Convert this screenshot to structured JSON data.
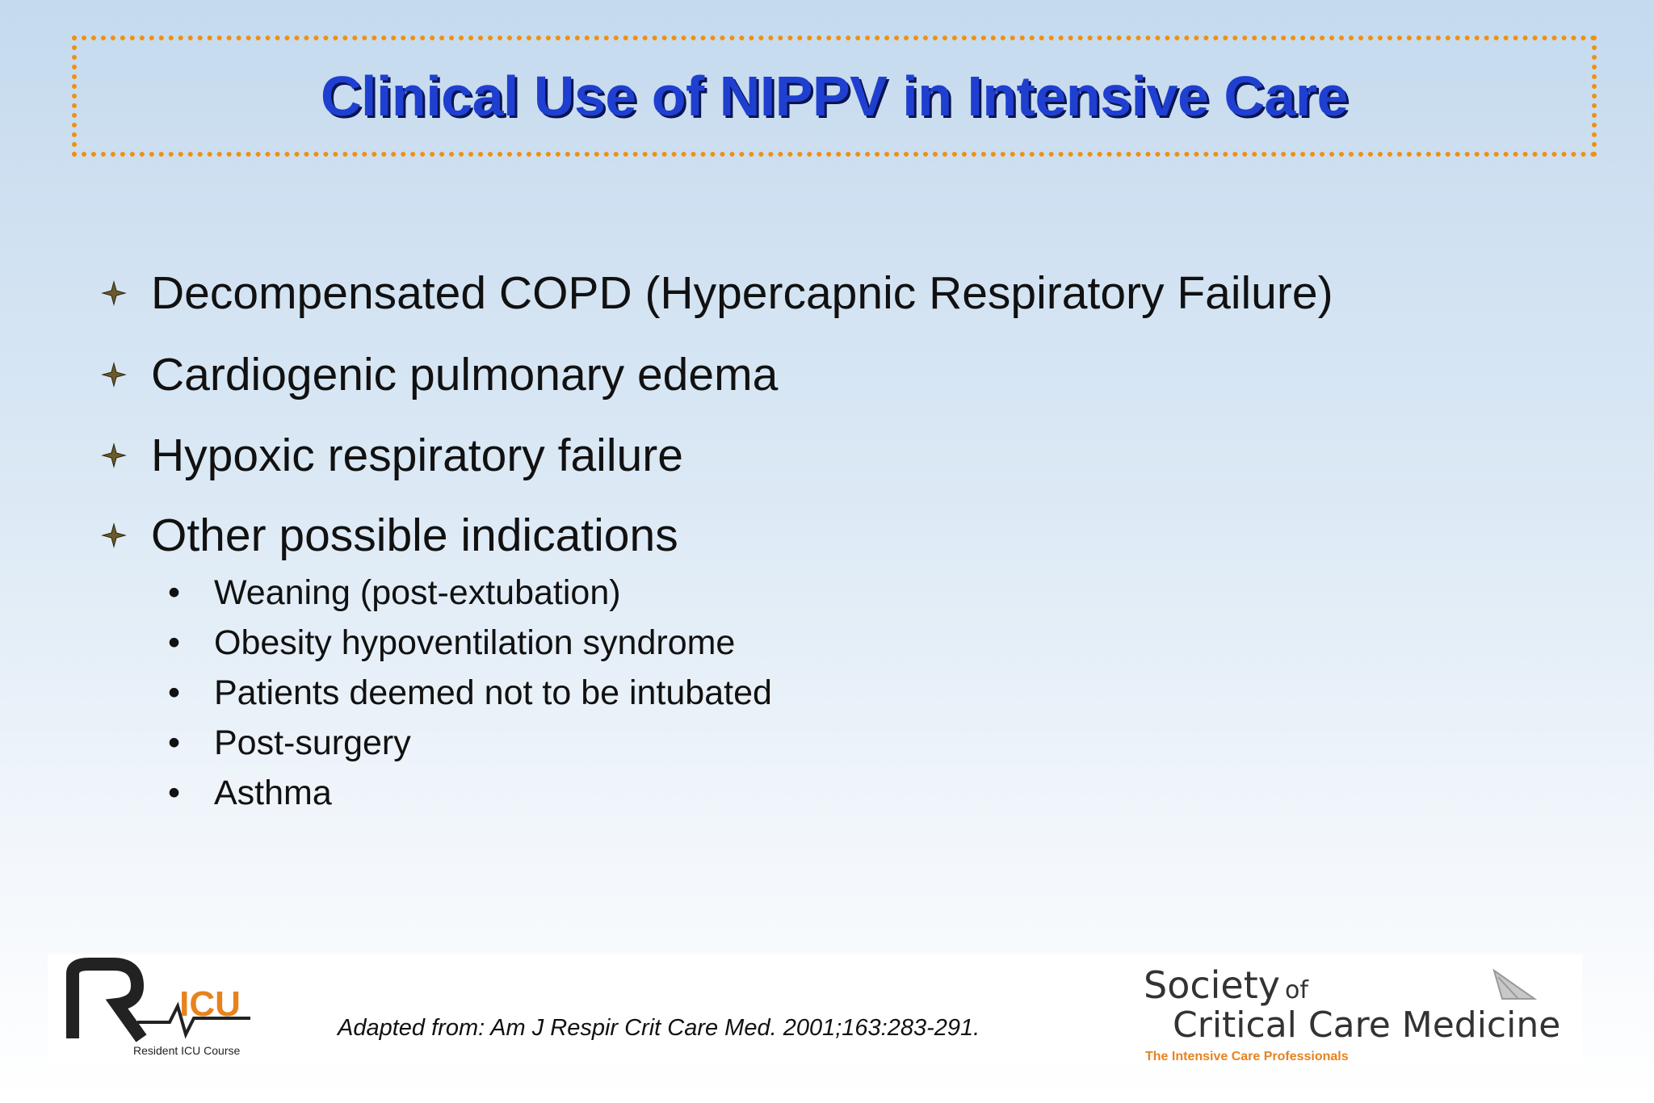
{
  "header": {
    "title": "Clinical Use of NIPPV in Intensive Care"
  },
  "bullets": [
    {
      "text": "Decompensated COPD (Hypercapnic Respiratory Failure)"
    },
    {
      "text": "Cardiogenic pulmonary edema"
    },
    {
      "text": "Hypoxic respiratory failure"
    },
    {
      "text": "Other possible indications",
      "sub_bullets": [
        "Weaning (post-extubation)",
        "Obesity hypoventilation syndrome",
        "Patients deemed not to be intubated",
        "Post-surgery",
        "Asthma"
      ]
    }
  ],
  "footer": {
    "citation": "Adapted from: Am J Respir Crit Care Med. 2001;163:283-291.",
    "left_logo": {
      "mark": "ICU",
      "caption": "Resident ICU Course"
    },
    "right_logo": {
      "line1": "Society",
      "line1_small": "of",
      "line2": "Critical Care Medicine",
      "tagline": "The Intensive Care Professionals"
    }
  }
}
